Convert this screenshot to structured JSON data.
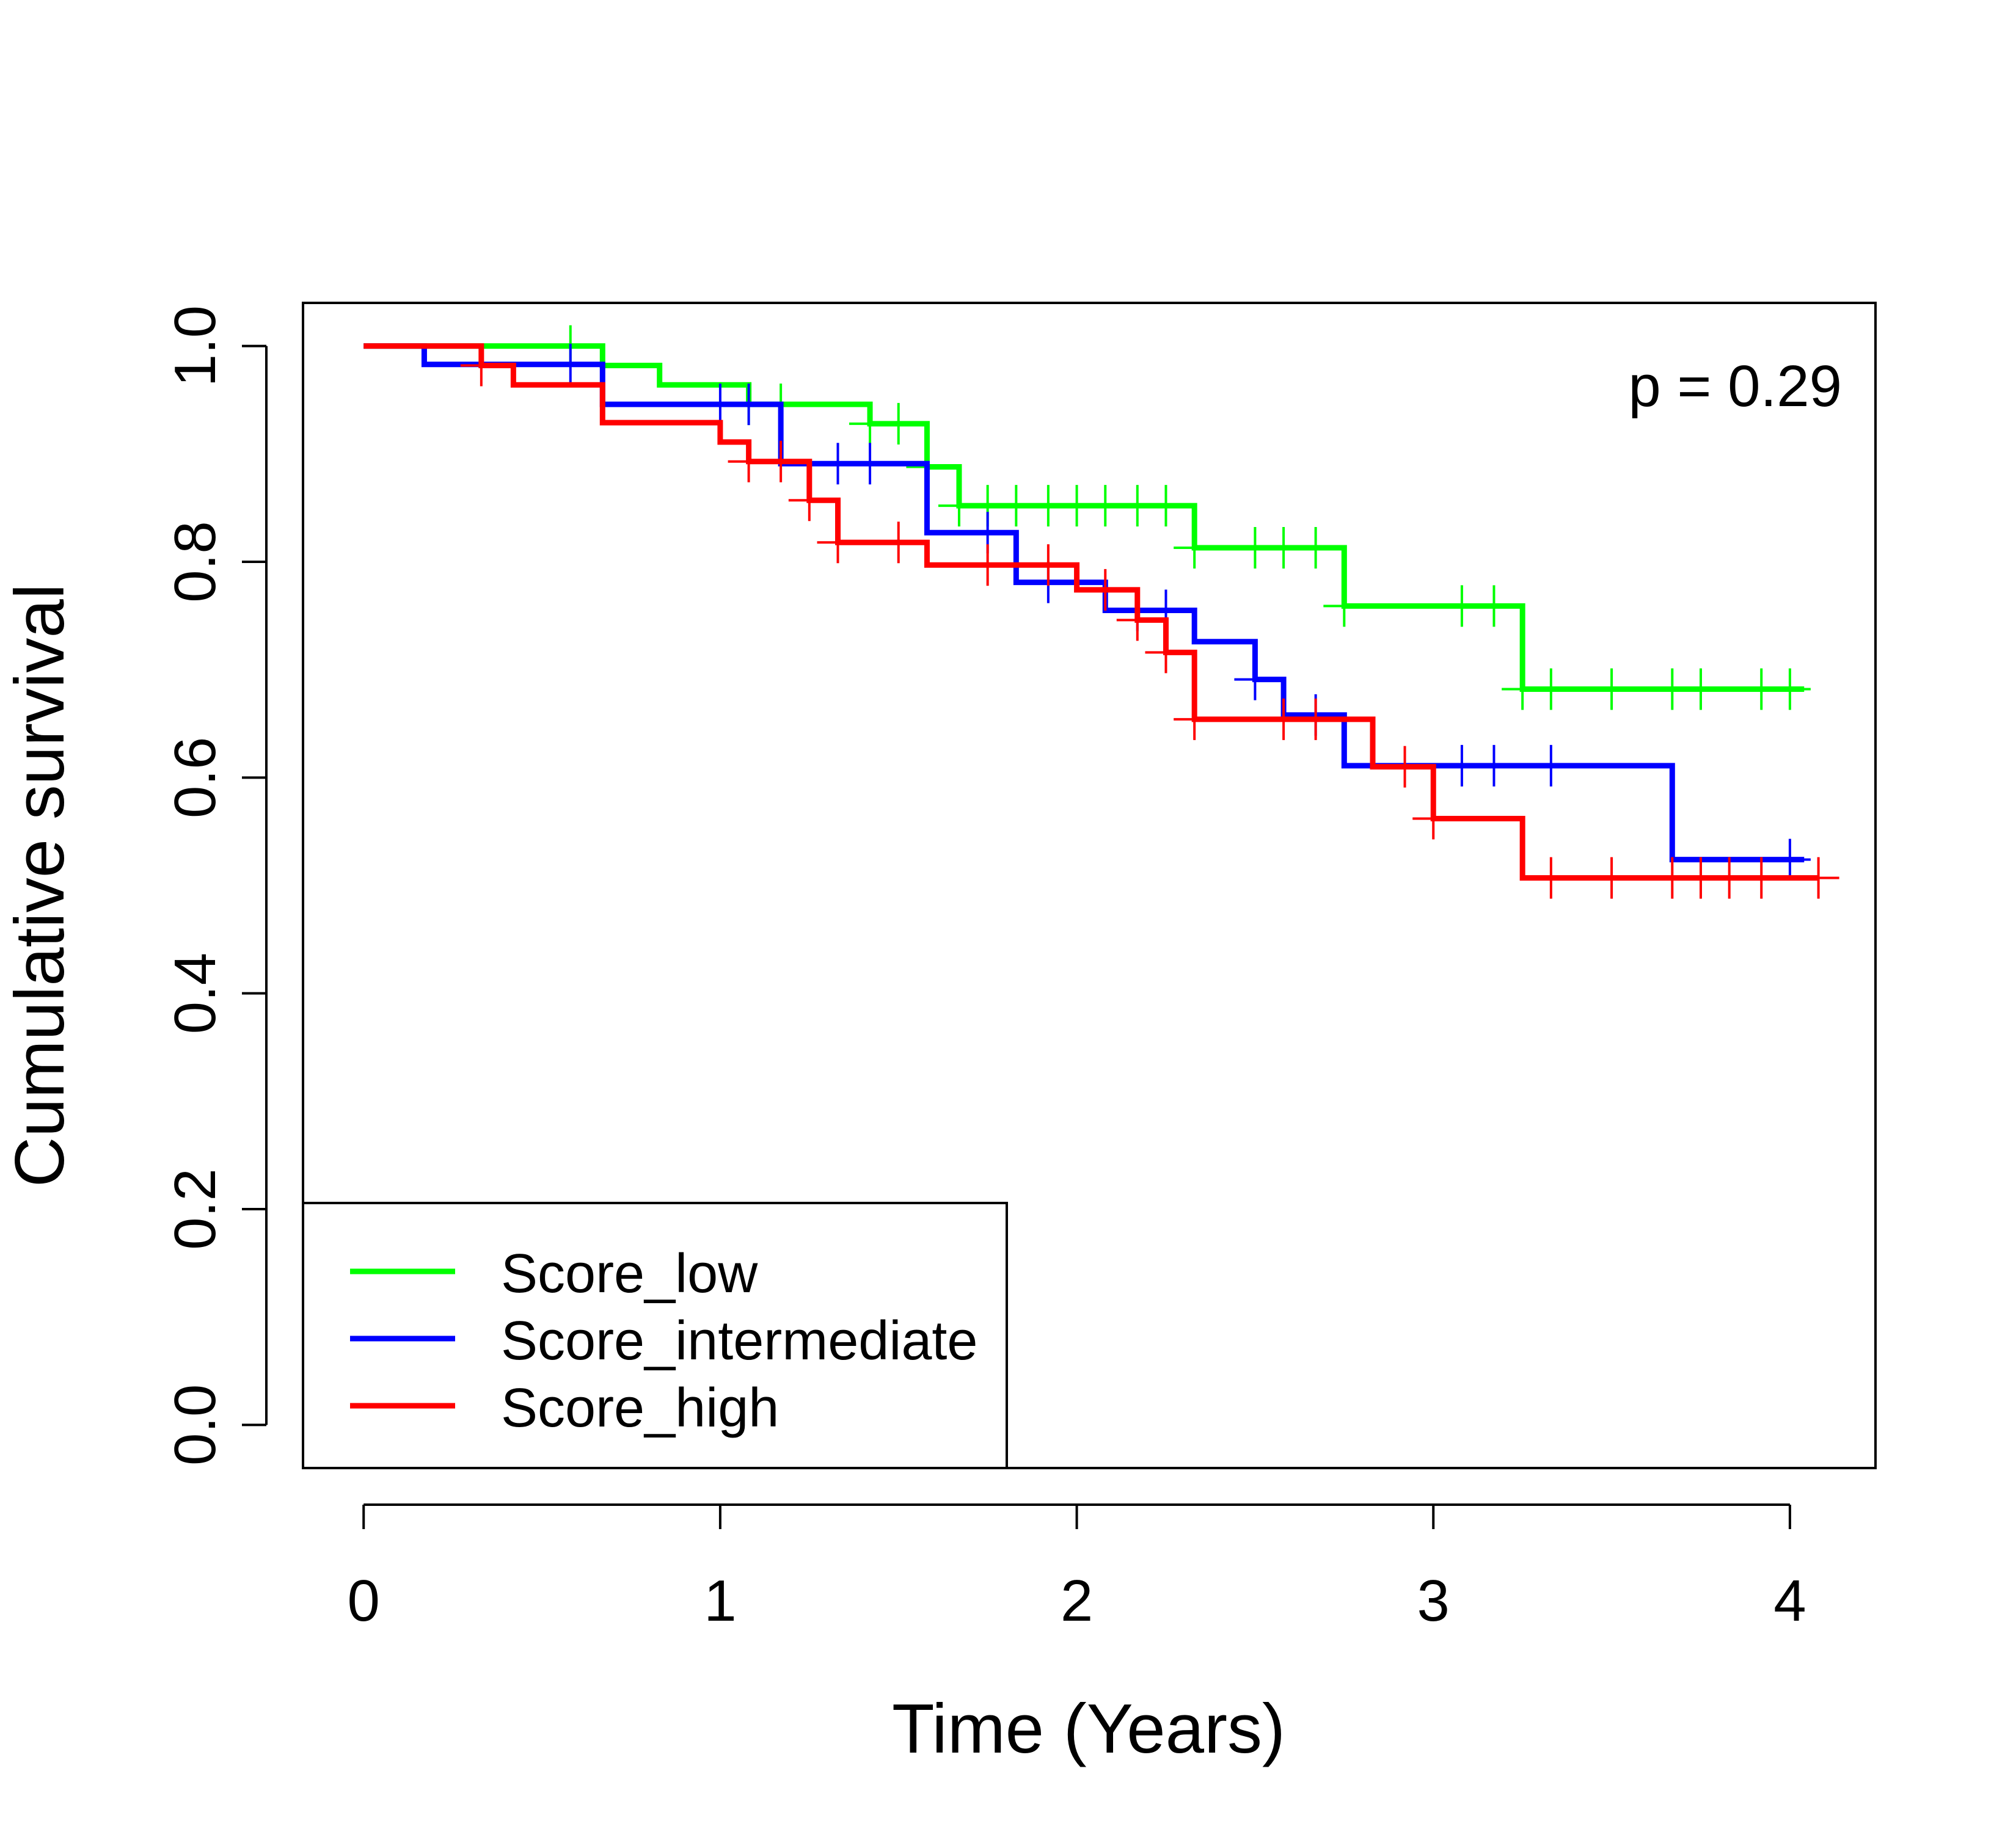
{
  "chart_data": {
    "type": "line",
    "title": "",
    "xlabel": "Time (Years)",
    "ylabel": "Cumulative survival",
    "xlim": [
      -0.17,
      4.24
    ],
    "ylim": [
      -0.04,
      1.04
    ],
    "x_ticks": [
      "0",
      "1",
      "2",
      "3",
      "4"
    ],
    "y_ticks": [
      "0.0",
      "0.2",
      "0.4",
      "0.6",
      "0.8",
      "1.0"
    ],
    "annotation": "p = 0.29",
    "legend_position": "bottom-left",
    "grid": false,
    "series": [
      {
        "name": "Score_low",
        "color": "#00ff00",
        "steps": [
          [
            0,
            1.0
          ],
          [
            0.17,
            1.0
          ],
          [
            0.67,
            0.982
          ],
          [
            0.83,
            0.964
          ],
          [
            1.08,
            0.946
          ],
          [
            1.42,
            0.928
          ],
          [
            1.58,
            0.888
          ],
          [
            1.67,
            0.852
          ],
          [
            2.33,
            0.813
          ],
          [
            2.75,
            0.759
          ],
          [
            3.25,
            0.682
          ],
          [
            4.04,
            0.682
          ]
        ],
        "censor_times": [
          0.58,
          1.08,
          1.17,
          1.42,
          1.5,
          1.58,
          1.67,
          1.75,
          1.83,
          1.92,
          2.0,
          2.08,
          2.17,
          2.25,
          2.33,
          2.5,
          2.58,
          2.67,
          2.75,
          3.08,
          3.17,
          3.25,
          3.33,
          3.5,
          3.67,
          3.75,
          3.92,
          4.0
        ]
      },
      {
        "name": "Score_intermediate",
        "color": "#0000ff",
        "steps": [
          [
            0,
            1.0
          ],
          [
            0.17,
            0.983
          ],
          [
            0.67,
            0.946
          ],
          [
            1.17,
            0.928
          ],
          [
            1.17,
            0.891
          ],
          [
            1.58,
            0.827
          ],
          [
            1.83,
            0.781
          ],
          [
            2.08,
            0.755
          ],
          [
            2.33,
            0.726
          ],
          [
            2.5,
            0.691
          ],
          [
            2.58,
            0.658
          ],
          [
            2.75,
            0.611
          ],
          [
            3.67,
            0.524
          ],
          [
            4.04,
            0.524
          ]
        ],
        "censor_times": [
          0.58,
          1.0,
          1.08,
          1.33,
          1.42,
          1.75,
          1.92,
          2.17,
          2.25,
          2.5,
          2.67,
          3.08,
          3.17,
          3.33,
          4.0
        ]
      },
      {
        "name": "Score_high",
        "color": "#ff0000",
        "steps": [
          [
            0,
            1.0
          ],
          [
            0.33,
            0.982
          ],
          [
            0.42,
            0.964
          ],
          [
            0.67,
            0.929
          ],
          [
            1.0,
            0.911
          ],
          [
            1.08,
            0.893
          ],
          [
            1.25,
            0.857
          ],
          [
            1.33,
            0.818
          ],
          [
            1.58,
            0.797
          ],
          [
            2.0,
            0.774
          ],
          [
            2.17,
            0.746
          ],
          [
            2.25,
            0.716
          ],
          [
            2.33,
            0.654
          ],
          [
            2.83,
            0.61
          ],
          [
            3.0,
            0.562
          ],
          [
            3.25,
            0.507
          ],
          [
            4.08,
            0.507
          ]
        ],
        "censor_times": [
          0.33,
          1.08,
          1.17,
          1.25,
          1.33,
          1.5,
          1.75,
          1.92,
          2.08,
          2.17,
          2.25,
          2.33,
          2.58,
          2.67,
          2.92,
          3.0,
          3.33,
          3.5,
          3.67,
          3.75,
          3.83,
          3.92,
          4.08
        ]
      }
    ]
  }
}
